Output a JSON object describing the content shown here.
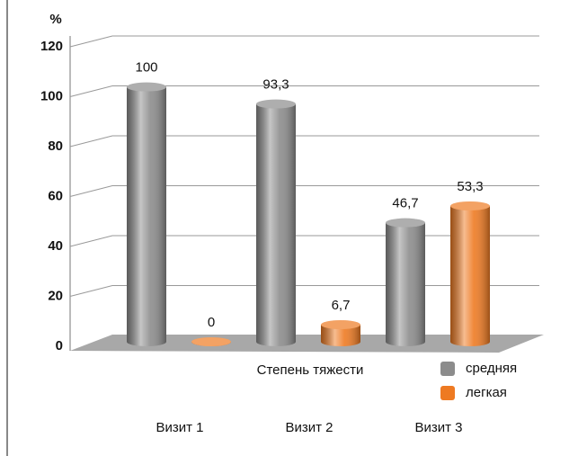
{
  "chart_data": {
    "type": "bar",
    "y_label": "%",
    "x_label": "Степень тяжести",
    "categories": [
      "Визит 1",
      "Визит 2",
      "Визит 3"
    ],
    "series": [
      {
        "name": "средняя",
        "color": "#8c8c8c",
        "values": [
          100,
          93.3,
          46.7
        ],
        "value_labels": [
          "100",
          "93,3",
          "46,7"
        ]
      },
      {
        "name": "легкая",
        "color": "#ee7a22",
        "values": [
          0,
          6.7,
          53.3
        ],
        "value_labels": [
          "0",
          "6,7",
          "53,3"
        ]
      }
    ],
    "ylim": [
      0,
      120
    ],
    "yticks": [
      0,
      20,
      40,
      60,
      80,
      100,
      120
    ],
    "grid": true
  }
}
